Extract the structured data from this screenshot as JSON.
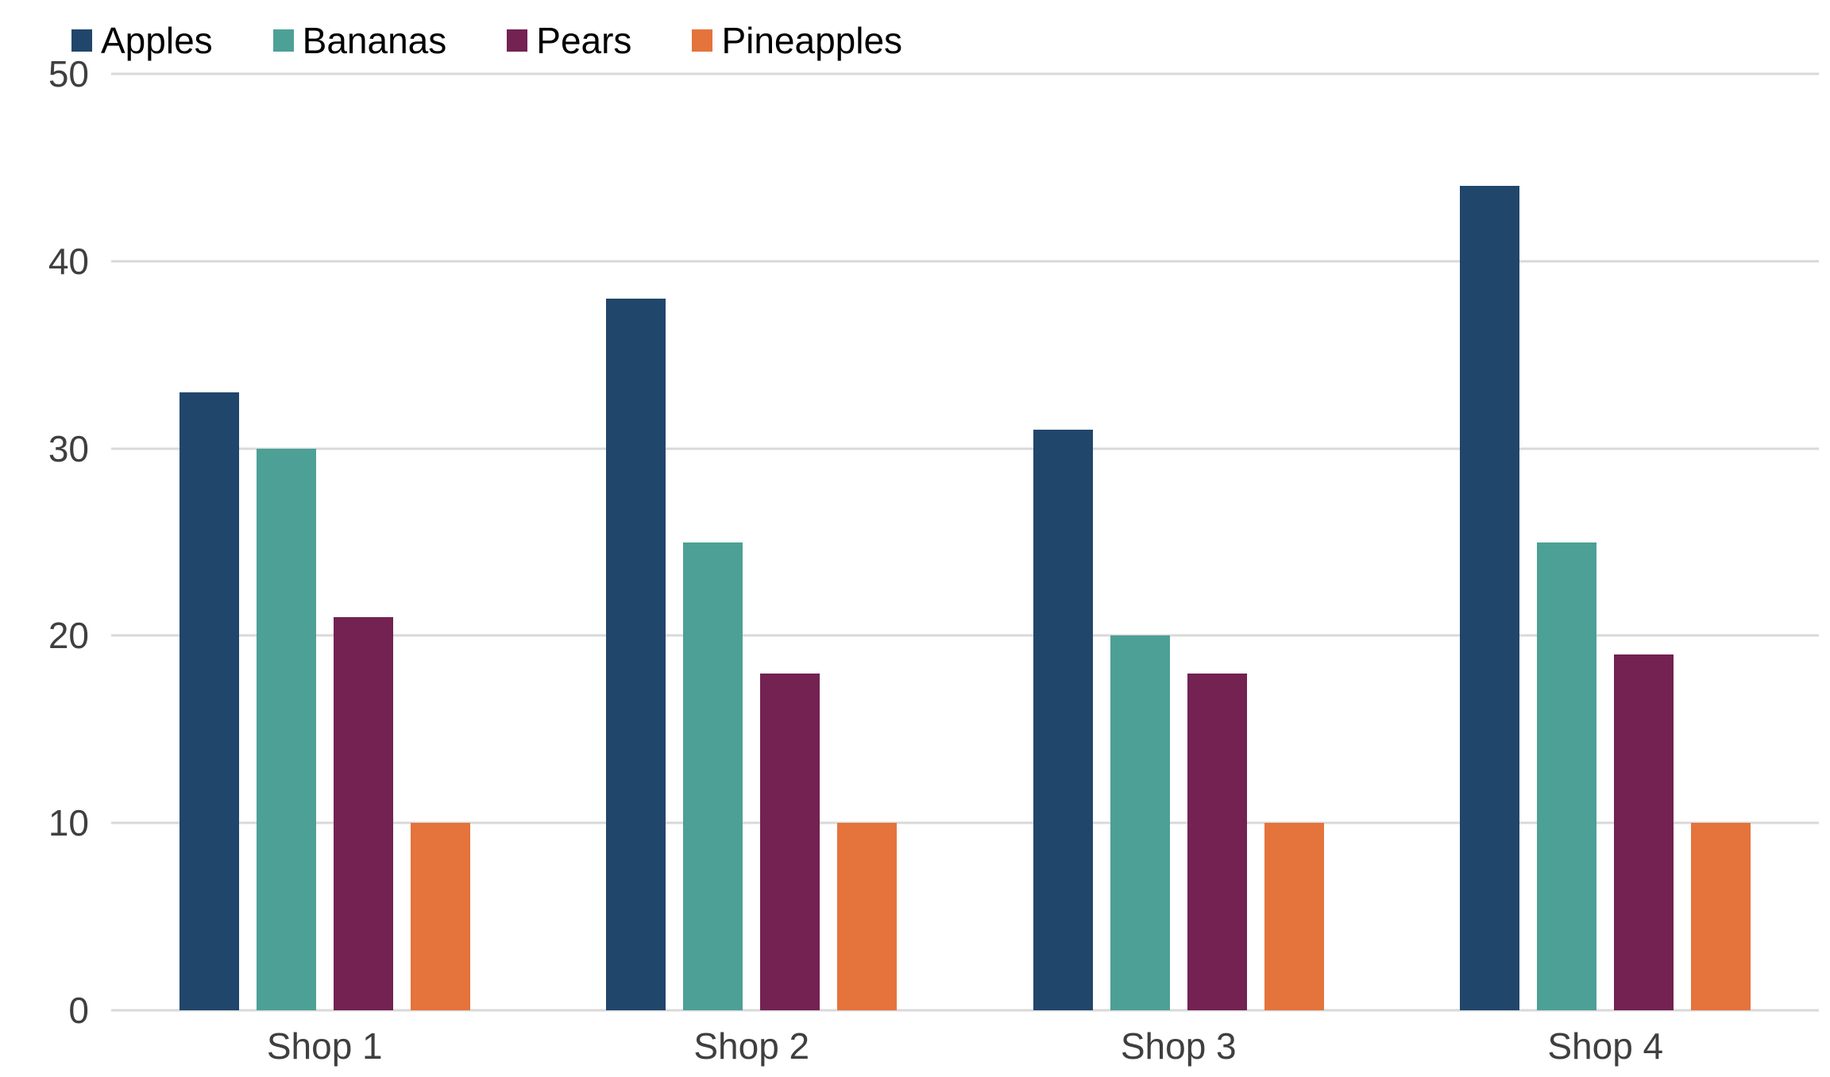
{
  "chart_data": {
    "type": "bar",
    "title": "",
    "categories": [
      "Shop 1",
      "Shop 2",
      "Shop 3",
      "Shop 4"
    ],
    "series": [
      {
        "name": "Apples",
        "color": "#21466B",
        "values": [
          33,
          38,
          31,
          44
        ]
      },
      {
        "name": "Bananas",
        "color": "#4DA096",
        "values": [
          30,
          25,
          20,
          25
        ]
      },
      {
        "name": "Pears",
        "color": "#732251",
        "values": [
          21,
          18,
          18,
          19
        ]
      },
      {
        "name": "Pineapples",
        "color": "#E4733C",
        "values": [
          10,
          10,
          10,
          10
        ]
      }
    ],
    "xlabel": "",
    "ylabel": "",
    "ylim": [
      0,
      50
    ],
    "yticks": [
      0,
      10,
      20,
      30,
      40,
      50
    ],
    "grid": true,
    "legend_position": "top-left",
    "colors": {
      "gridline": "#D9D9D9",
      "axis_label": "#3F3F3F",
      "legend_text": "#000000",
      "background": "#FFFFFF"
    }
  }
}
